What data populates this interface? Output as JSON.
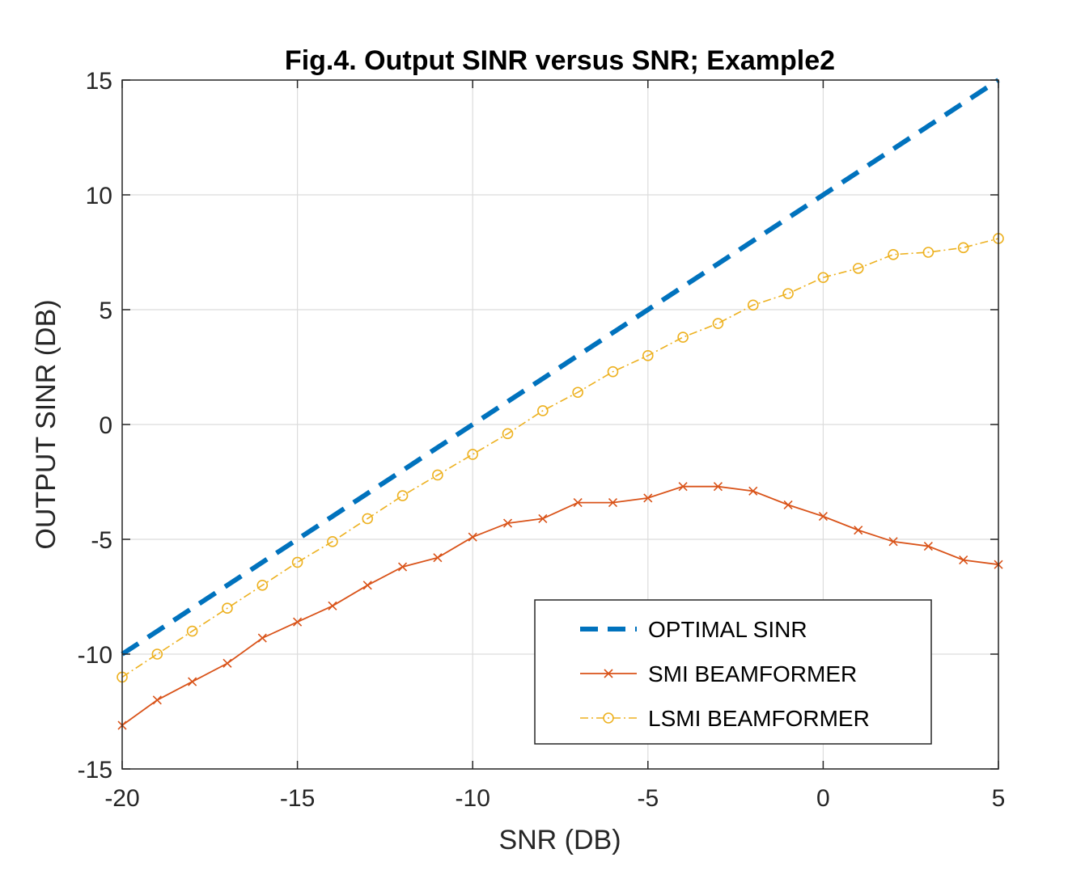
{
  "chart_data": {
    "type": "line",
    "title": "Fig.4. Output SINR versus SNR; Example2",
    "xlabel": "SNR (DB)",
    "ylabel": "OUTPUT SINR (DB)",
    "xlim": [
      -20,
      5
    ],
    "ylim": [
      -15,
      15
    ],
    "xticks": [
      -20,
      -15,
      -10,
      -5,
      0,
      5
    ],
    "yticks": [
      -15,
      -10,
      -5,
      0,
      5,
      10,
      15
    ],
    "xtick_labels": [
      "-20",
      "-15",
      "-10",
      "-5",
      "0",
      "5"
    ],
    "ytick_labels": [
      "-15",
      "-10",
      "-5",
      "0",
      "5",
      "10",
      "15"
    ],
    "grid": true,
    "legend_position": "bottom-right",
    "x": [
      -20,
      -19,
      -18,
      -17,
      -16,
      -15,
      -14,
      -13,
      -12,
      -11,
      -10,
      -9,
      -8,
      -7,
      -6,
      -5,
      -4,
      -3,
      -2,
      -1,
      0,
      1,
      2,
      3,
      4,
      5
    ],
    "series": [
      {
        "name": "OPTIMAL SINR",
        "color": "#0072BD",
        "style": "dashed",
        "marker": "none",
        "values": [
          -10,
          -9,
          -8,
          -7,
          -6,
          -5,
          -4,
          -3,
          -2,
          -1,
          0,
          1,
          2,
          3,
          4,
          5,
          6,
          7,
          8,
          9,
          10,
          11,
          12,
          13,
          14,
          15
        ]
      },
      {
        "name": "SMI BEAMFORMER",
        "color": "#D95319",
        "style": "solid",
        "marker": "x",
        "values": [
          -13.1,
          -12.0,
          -11.2,
          -10.4,
          -9.3,
          -8.6,
          -7.9,
          -7.0,
          -6.2,
          -5.8,
          -4.9,
          -4.3,
          -4.1,
          -3.4,
          -3.4,
          -3.2,
          -2.7,
          -2.7,
          -2.9,
          -3.5,
          -4.0,
          -4.6,
          -5.1,
          -5.3,
          -5.9,
          -6.1
        ]
      },
      {
        "name": "LSMI BEAMFORMER",
        "color": "#EDB120",
        "style": "dashdot",
        "marker": "o",
        "values": [
          -11.0,
          -10.0,
          -9.0,
          -8.0,
          -7.0,
          -6.0,
          -5.1,
          -4.1,
          -3.1,
          -2.2,
          -1.3,
          -0.4,
          0.6,
          1.4,
          2.3,
          3.0,
          3.8,
          4.4,
          5.2,
          5.7,
          6.4,
          6.8,
          7.4,
          7.5,
          7.7,
          8.1
        ]
      }
    ]
  }
}
